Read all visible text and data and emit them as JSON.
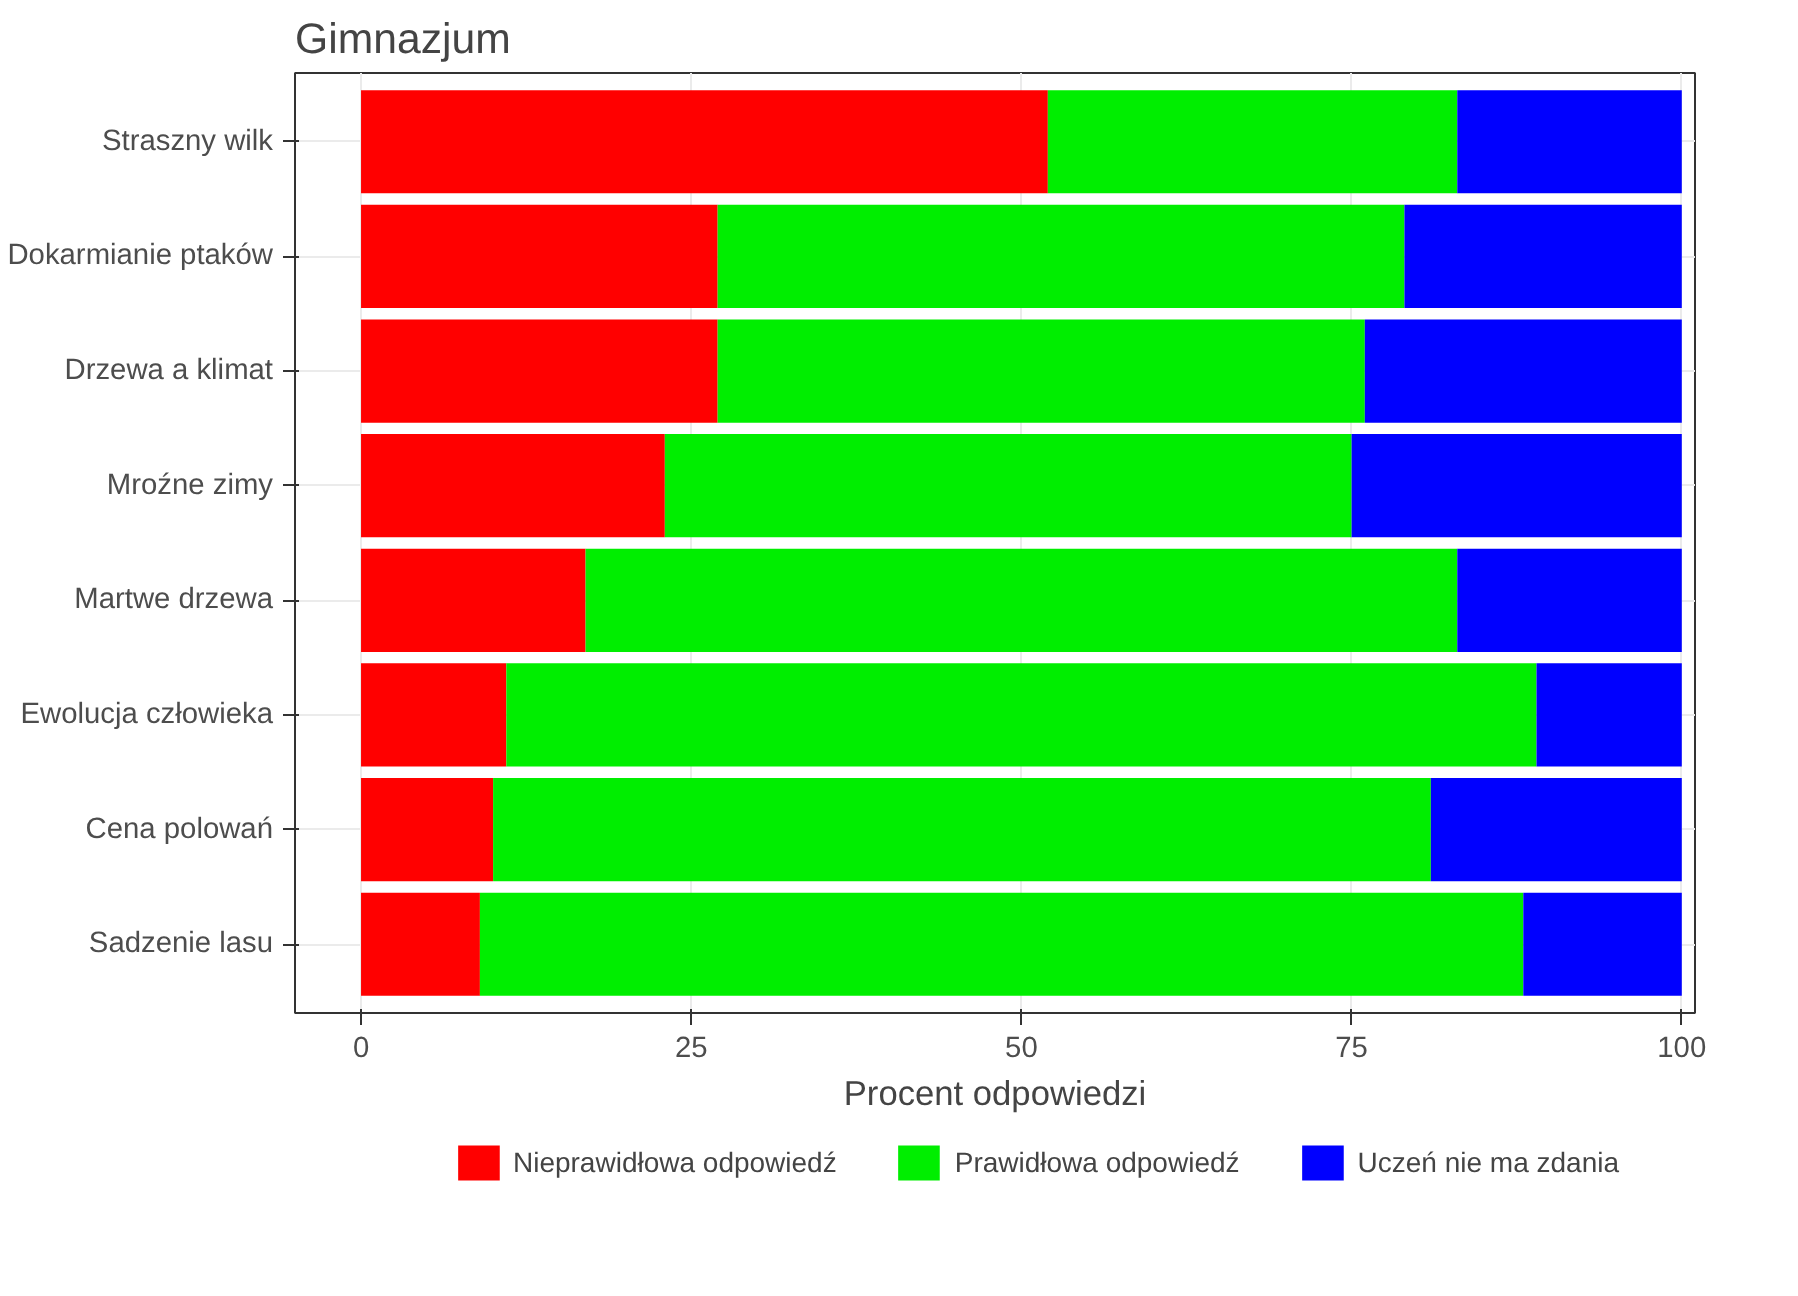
{
  "chart_data": {
    "type": "bar",
    "orientation": "horizontal",
    "stacked": true,
    "title": "Gimnazjum",
    "xlabel": "Procent odpowiedzi",
    "categories": [
      "Straszny wilk",
      "Dokarmianie ptaków",
      "Drzewa a klimat",
      "Mroźne zimy",
      "Martwe drzewa",
      "Ewolucja człowieka",
      "Cena polowań",
      "Sadzenie lasu"
    ],
    "series": [
      {
        "name": "Nieprawidłowa odpowiedź",
        "color": "#ff0000",
        "values": [
          52,
          27,
          27,
          23,
          17,
          11,
          10,
          9
        ]
      },
      {
        "name": "Prawidłowa odpowiedź",
        "color": "#00ee00",
        "values": [
          31,
          52,
          49,
          52,
          66,
          78,
          71,
          79
        ]
      },
      {
        "name": "Uczeń nie ma zdania",
        "color": "#0000ff",
        "values": [
          17,
          21,
          24,
          25,
          17,
          11,
          19,
          12
        ]
      }
    ],
    "xlim": [
      -5,
      101
    ],
    "xticks": [
      0,
      25,
      50,
      75,
      100
    ],
    "grid": true,
    "legend": "bottom"
  }
}
